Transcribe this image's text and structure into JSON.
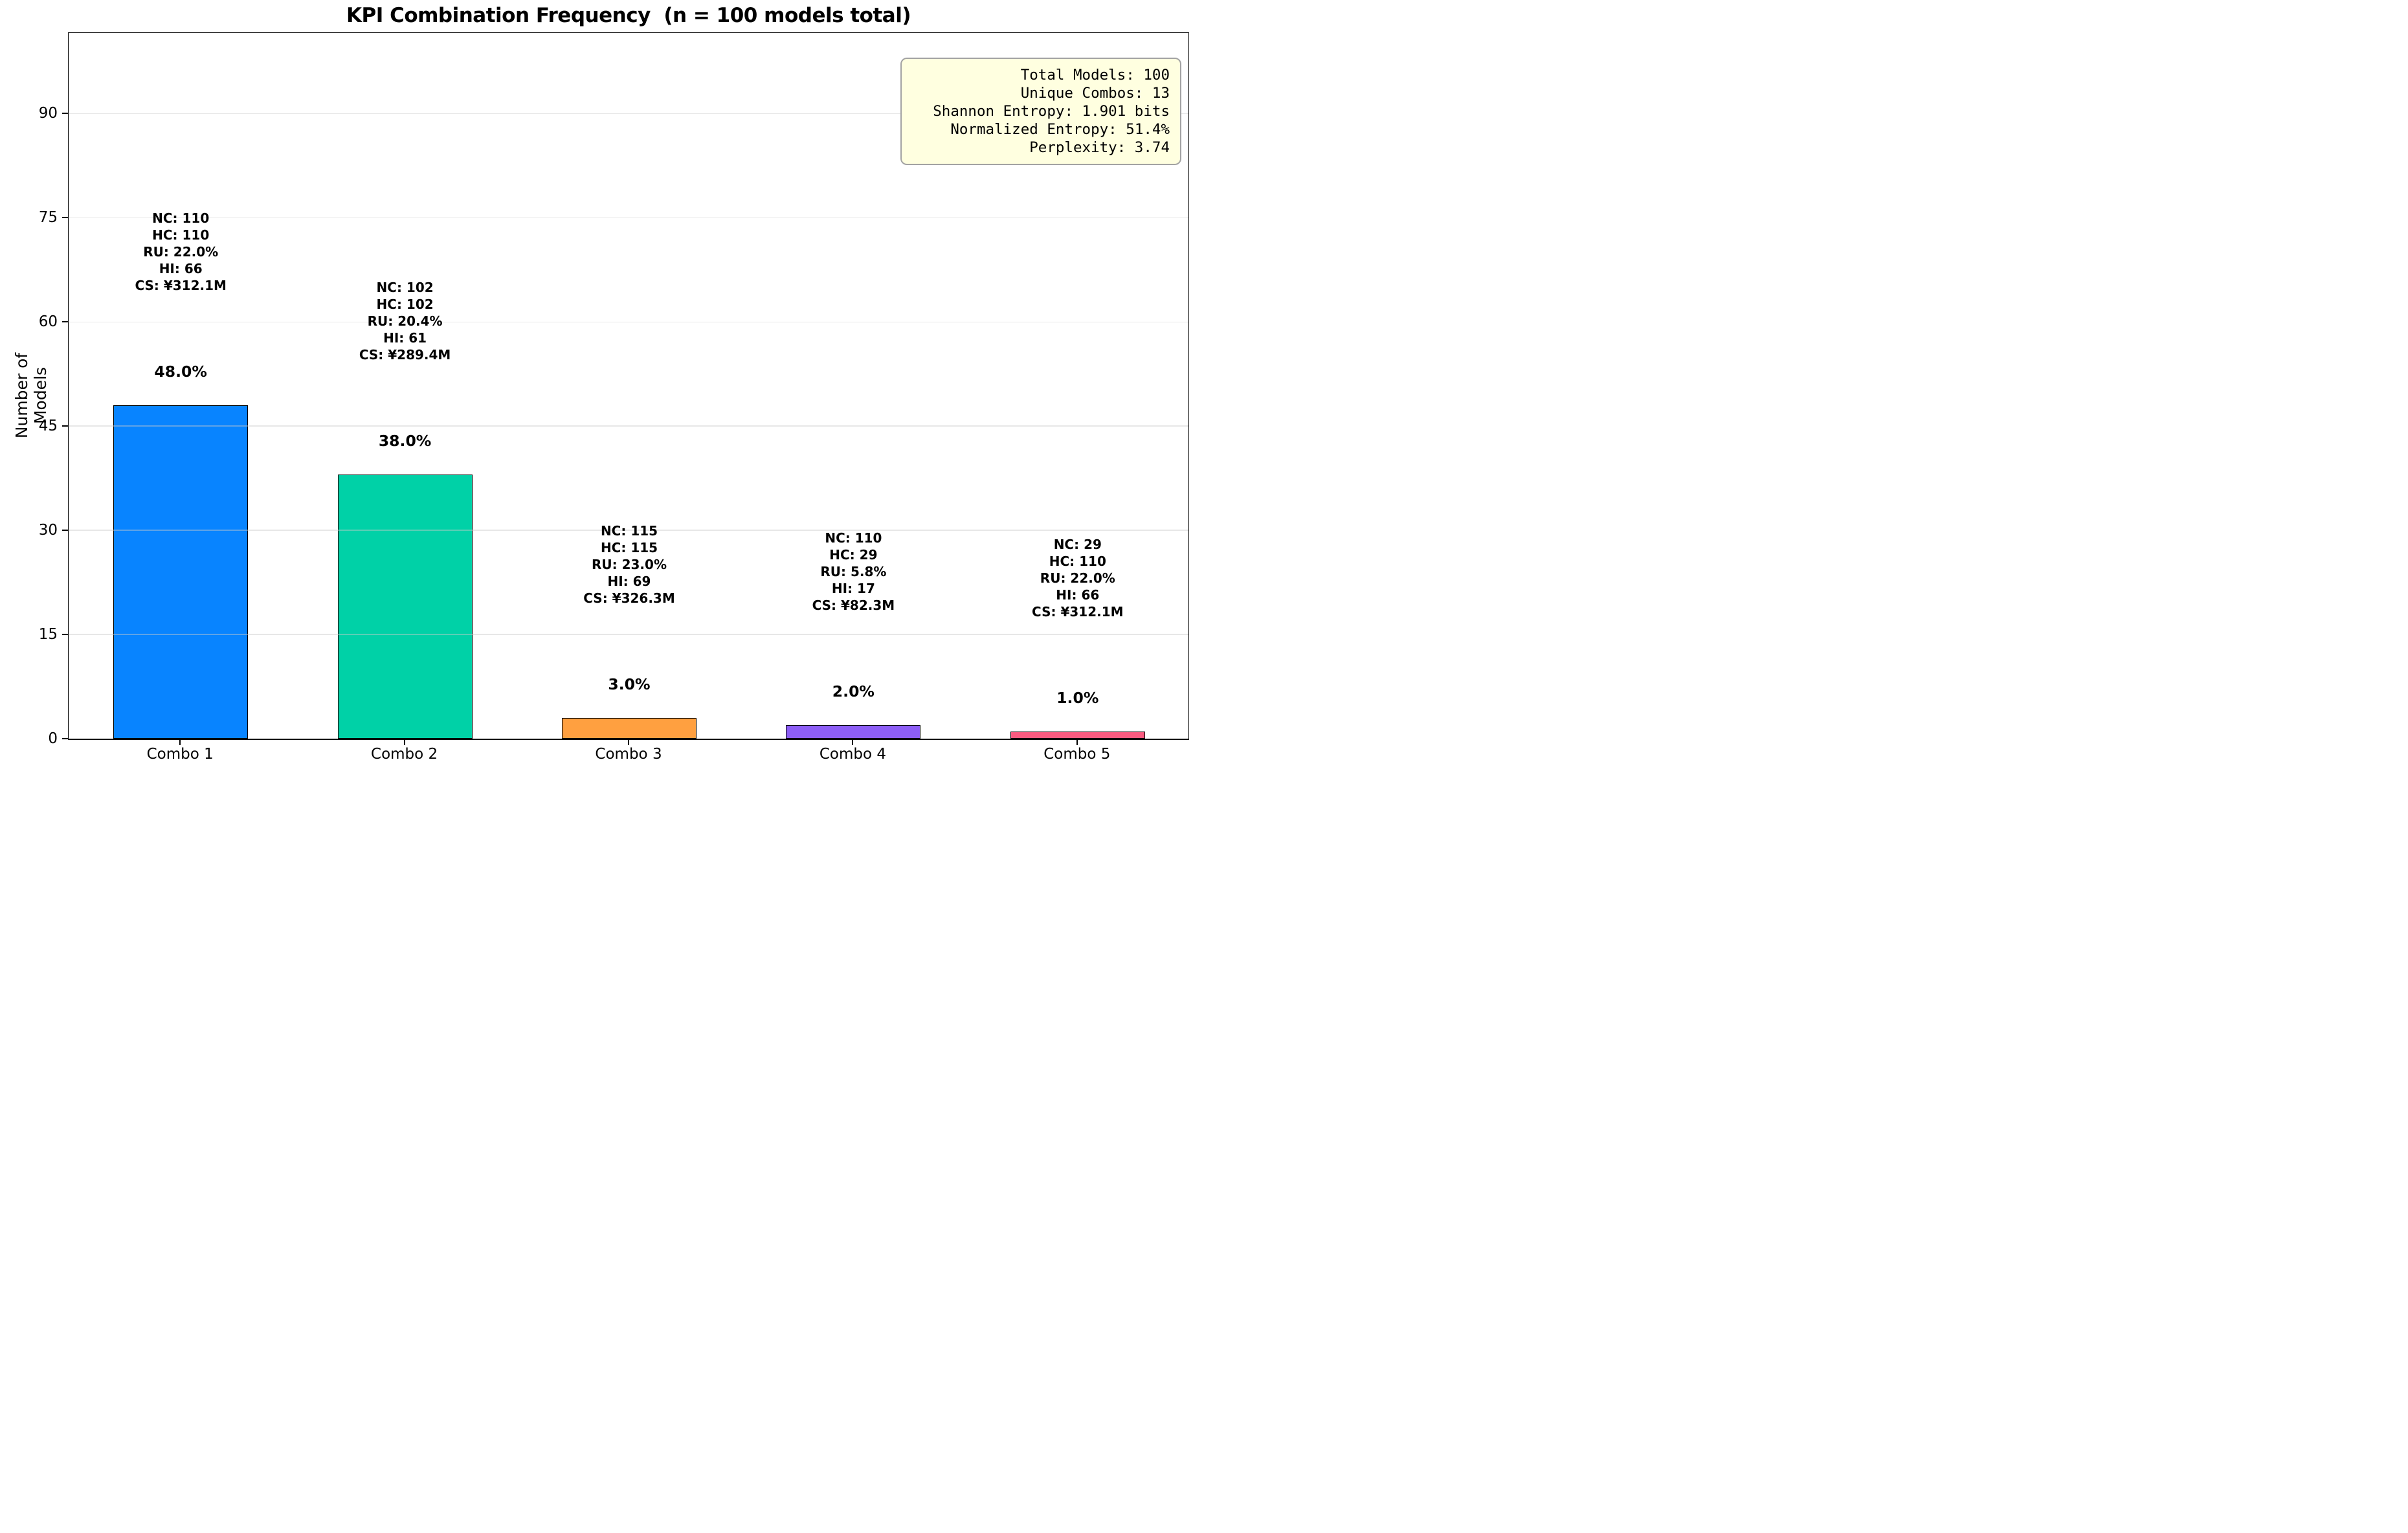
{
  "title": "KPI Combination Frequency  (n = 100 models total)",
  "stats_box": {
    "lines": [
      "Total Models: 100",
      "Unique Combos: 13",
      "Shannon Entropy: 1.901 bits",
      "Normalized Entropy: 51.4%",
      "Perplexity: 3.74"
    ],
    "background_color": "#FFFFE0",
    "border_color": "#a3a3a3"
  },
  "chart_data": {
    "type": "bar",
    "title": "KPI Combination Frequency  (n = 100 models total)",
    "xlabel": "",
    "ylabel": "Number of Models",
    "categories": [
      "Combo 1",
      "Combo 2",
      "Combo 3",
      "Combo 4",
      "Combo 5"
    ],
    "values": [
      48,
      38,
      3,
      2,
      1
    ],
    "pct_labels": [
      "48.0%",
      "38.0%",
      "3.0%",
      "2.0%",
      "1.0%"
    ],
    "bar_annotations": [
      [
        "NC: 110",
        "HC: 110",
        "RU: 22.0%",
        "HI: 66",
        "CS: ¥312.1M"
      ],
      [
        "NC: 102",
        "HC: 102",
        "RU: 20.4%",
        "HI: 61",
        "CS: ¥289.4M"
      ],
      [
        "NC: 115",
        "HC: 115",
        "RU: 23.0%",
        "HI: 69",
        "CS: ¥326.3M"
      ],
      [
        "NC: 110",
        "HC: 29",
        "RU: 5.8%",
        "HI: 17",
        "CS: ¥82.3M"
      ],
      [
        "NC: 29",
        "HC: 110",
        "RU: 22.0%",
        "HI: 66",
        "CS: ¥312.1M"
      ]
    ],
    "bar_colors": [
      "#0884FF",
      "#00D1A7",
      "#FFA040",
      "#8D5EF6",
      "#FB5B80"
    ],
    "yticks": [
      0,
      15,
      30,
      45,
      60,
      75,
      90
    ],
    "ylim": [
      0,
      101.5
    ],
    "grid": "horizontal",
    "legend": "none"
  }
}
